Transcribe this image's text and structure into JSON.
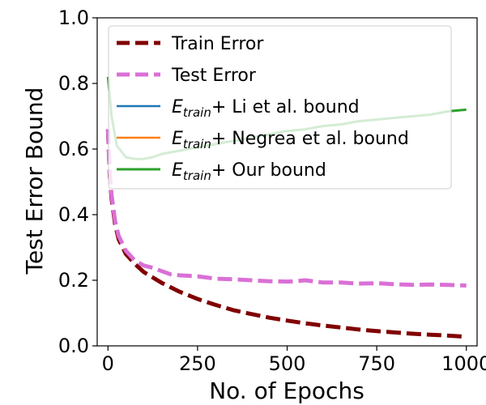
{
  "chart_data": {
    "type": "line",
    "title": "",
    "xlabel": "No. of Epochs",
    "ylabel": "Test Error Bound",
    "xlim": [
      -30,
      1030
    ],
    "ylim": [
      0.0,
      1.0
    ],
    "xticks": [
      0,
      250,
      500,
      750,
      1000
    ],
    "yticks": [
      0.0,
      0.2,
      0.4,
      0.6,
      0.8,
      1.0
    ],
    "xtick_labels": [
      "0",
      "250",
      "500",
      "750",
      "1000"
    ],
    "ytick_labels": [
      "0.0",
      "0.2",
      "0.4",
      "0.6",
      "0.8",
      "1.0"
    ],
    "grid": false,
    "legend_position": "upper-left",
    "series": [
      {
        "name": "Train Error",
        "legend_label": "Train Error",
        "color": "#800000",
        "style": "dashed",
        "x": [
          0,
          5,
          10,
          20,
          30,
          50,
          75,
          100,
          150,
          200,
          250,
          300,
          350,
          400,
          450,
          500,
          550,
          600,
          650,
          700,
          750,
          800,
          850,
          900,
          950,
          1000
        ],
        "y": [
          0.66,
          0.52,
          0.45,
          0.37,
          0.325,
          0.28,
          0.25,
          0.225,
          0.192,
          0.165,
          0.143,
          0.125,
          0.109,
          0.097,
          0.086,
          0.077,
          0.069,
          0.062,
          0.056,
          0.05,
          0.045,
          0.041,
          0.037,
          0.034,
          0.031,
          0.028
        ]
      },
      {
        "name": "Test Error",
        "legend_label": "Test Error",
        "color": "#da70d6",
        "style": "dashed",
        "x": [
          0,
          5,
          10,
          20,
          30,
          50,
          75,
          100,
          125,
          150,
          175,
          200,
          250,
          300,
          350,
          400,
          450,
          500,
          525,
          550,
          600,
          650,
          700,
          750,
          800,
          850,
          900,
          950,
          1000
        ],
        "y": [
          0.66,
          0.53,
          0.46,
          0.38,
          0.335,
          0.29,
          0.26,
          0.245,
          0.238,
          0.228,
          0.218,
          0.215,
          0.212,
          0.205,
          0.203,
          0.2,
          0.197,
          0.196,
          0.197,
          0.2,
          0.193,
          0.193,
          0.19,
          0.191,
          0.188,
          0.186,
          0.187,
          0.186,
          0.184
        ]
      },
      {
        "name": "Li et al. bound",
        "legend_prefix": "E",
        "legend_sub": "train",
        "legend_suffix": "+ Li et al. bound",
        "color": "#1f77b4",
        "style": "solid",
        "x": [],
        "y": []
      },
      {
        "name": "Negrea et al. bound",
        "legend_prefix": "E",
        "legend_sub": "train",
        "legend_suffix": "+ Negrea et al. bound",
        "color": "#ff7f0e",
        "style": "solid",
        "x": [],
        "y": []
      },
      {
        "name": "Our bound",
        "legend_prefix": "E",
        "legend_sub": "train",
        "legend_suffix": "+ Our bound",
        "color": "#2ca02c",
        "style": "solid",
        "x": [
          0,
          10,
          25,
          50,
          75,
          100,
          125,
          150,
          200,
          250,
          300,
          350,
          400,
          450,
          500,
          550,
          600,
          650,
          700,
          750,
          800,
          850,
          900,
          950,
          1000
        ],
        "y": [
          0.82,
          0.7,
          0.61,
          0.575,
          0.57,
          0.57,
          0.575,
          0.585,
          0.595,
          0.605,
          0.615,
          0.625,
          0.635,
          0.645,
          0.655,
          0.66,
          0.67,
          0.675,
          0.685,
          0.69,
          0.695,
          0.7,
          0.705,
          0.715,
          0.72
        ]
      }
    ]
  }
}
